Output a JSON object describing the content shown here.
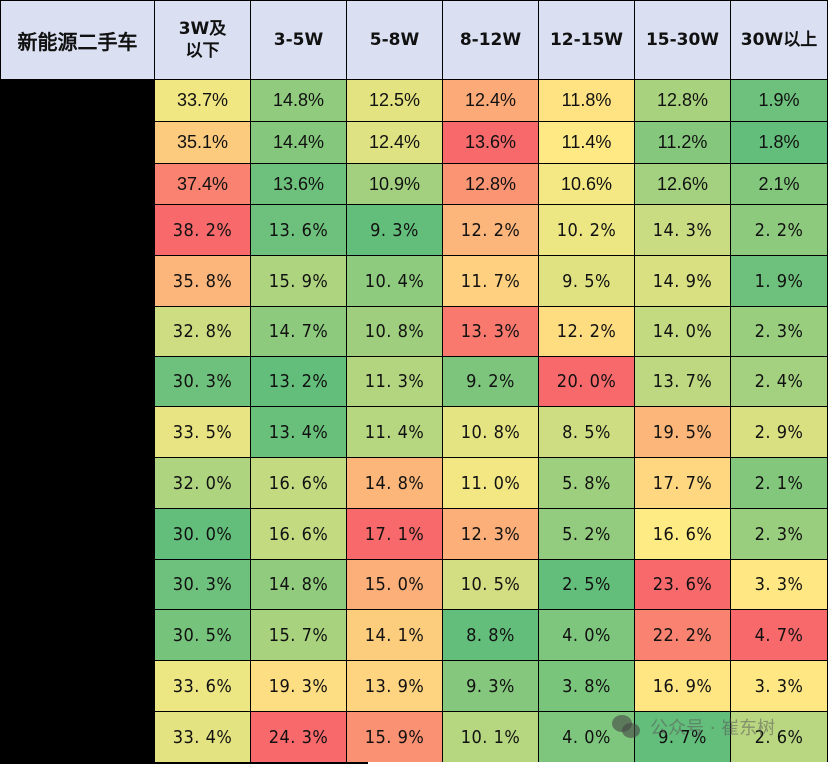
{
  "chart_data": {
    "type": "heatmap",
    "title": "新能源二手车",
    "corner_label": "新能源二手车",
    "columns": [
      "3W及以下",
      "3-5W",
      "5-8W",
      "8-12W",
      "12-15W",
      "15-30W",
      "30W以上"
    ],
    "row_labels": [
      "",
      "",
      "",
      "",
      "",
      "",
      "",
      "",
      "",
      "",
      "",
      "",
      "",
      ""
    ],
    "rows": [
      [
        "33.7%",
        "14.8%",
        "12.5%",
        "12.4%",
        "11.8%",
        "12.8%",
        "1.9%"
      ],
      [
        "35.1%",
        "14.4%",
        "12.4%",
        "13.6%",
        "11.4%",
        "11.2%",
        "1.8%"
      ],
      [
        "37.4%",
        "13.6%",
        "10.9%",
        "12.8%",
        "10.6%",
        "12.6%",
        "2.1%"
      ],
      [
        "38.2%",
        "13.6%",
        "9.3%",
        "12.2%",
        "10.2%",
        "14.3%",
        "2.2%"
      ],
      [
        "35.8%",
        "15.9%",
        "10.4%",
        "11.7%",
        "9.5%",
        "14.9%",
        "1.9%"
      ],
      [
        "32.8%",
        "14.7%",
        "10.8%",
        "13.3%",
        "12.2%",
        "14.0%",
        "2.3%"
      ],
      [
        "30.3%",
        "13.2%",
        "11.3%",
        "9.2%",
        "20.0%",
        "13.7%",
        "2.4%"
      ],
      [
        "33.5%",
        "13.4%",
        "11.4%",
        "10.8%",
        "8.5%",
        "19.5%",
        "2.9%"
      ],
      [
        "32.0%",
        "16.6%",
        "14.8%",
        "11.0%",
        "5.8%",
        "17.7%",
        "2.1%"
      ],
      [
        "30.0%",
        "16.6%",
        "17.1%",
        "12.3%",
        "5.2%",
        "16.6%",
        "2.3%"
      ],
      [
        "30.3%",
        "14.8%",
        "15.0%",
        "10.5%",
        "2.5%",
        "23.6%",
        "3.3%"
      ],
      [
        "30.5%",
        "15.7%",
        "14.1%",
        "8.8%",
        "4.0%",
        "22.2%",
        "4.7%"
      ],
      [
        "33.6%",
        "19.3%",
        "13.9%",
        "9.3%",
        "3.8%",
        "16.9%",
        "3.3%"
      ],
      [
        "33.4%",
        "24.3%",
        "15.9%",
        "10.1%",
        "4.0%",
        "9.7%",
        "2.6%"
      ]
    ],
    "values": [
      [
        33.7,
        14.8,
        12.5,
        12.4,
        11.8,
        12.8,
        1.9
      ],
      [
        35.1,
        14.4,
        12.4,
        13.6,
        11.4,
        11.2,
        1.8
      ],
      [
        37.4,
        13.6,
        10.9,
        12.8,
        10.6,
        12.6,
        2.1
      ],
      [
        38.2,
        13.6,
        9.3,
        12.2,
        10.2,
        14.3,
        2.2
      ],
      [
        35.8,
        15.9,
        10.4,
        11.7,
        9.5,
        14.9,
        1.9
      ],
      [
        32.8,
        14.7,
        10.8,
        13.3,
        12.2,
        14.0,
        2.3
      ],
      [
        30.3,
        13.2,
        11.3,
        9.2,
        20.0,
        13.7,
        2.4
      ],
      [
        33.5,
        13.4,
        11.4,
        10.8,
        8.5,
        19.5,
        2.9
      ],
      [
        32.0,
        16.6,
        14.8,
        11.0,
        5.8,
        17.7,
        2.1
      ],
      [
        30.0,
        16.6,
        17.1,
        12.3,
        5.2,
        16.6,
        2.3
      ],
      [
        30.3,
        14.8,
        15.0,
        10.5,
        2.5,
        23.6,
        3.3
      ],
      [
        30.5,
        15.7,
        14.1,
        8.8,
        4.0,
        22.2,
        4.7
      ],
      [
        33.6,
        19.3,
        13.9,
        9.3,
        3.8,
        16.9,
        3.3
      ],
      [
        33.4,
        24.3,
        15.9,
        10.1,
        4.0,
        9.7,
        2.6
      ]
    ],
    "colorscale": {
      "low": "#63be7b",
      "mid": "#ffeb84",
      "high": "#f8696b",
      "scope": "per-column"
    },
    "unit": "%"
  },
  "header_color": "#dae0f2",
  "watermark": {
    "text": "公众号 · 崔东树",
    "icon": "wechat-icon"
  }
}
